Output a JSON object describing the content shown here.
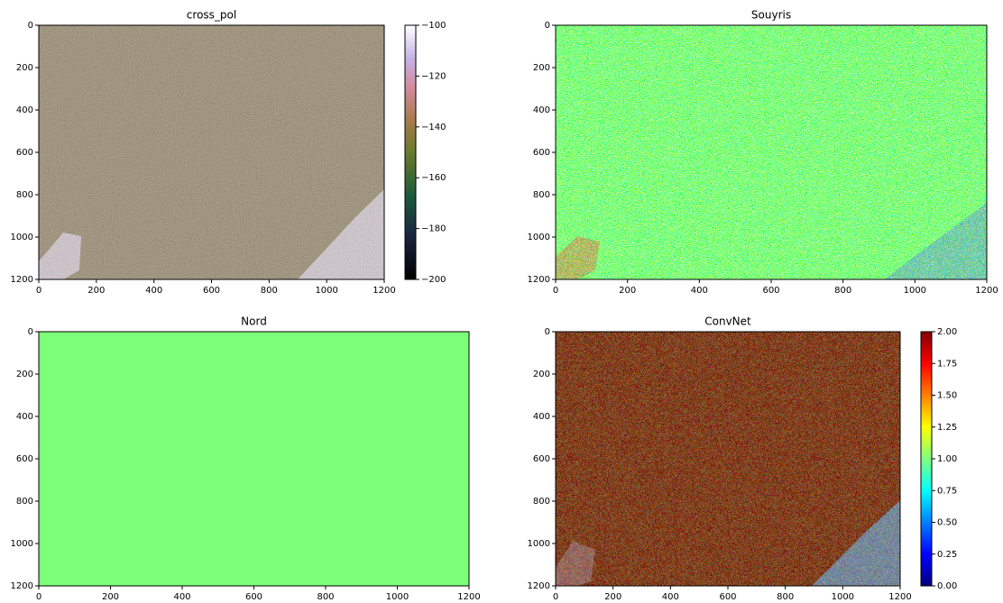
{
  "chart_data": [
    {
      "type": "image",
      "title": "cross_pol",
      "colormap": "cubehelix",
      "xlim": [
        0,
        1200
      ],
      "ylim": [
        1200,
        0
      ],
      "xticks": [
        0,
        200,
        400,
        600,
        800,
        1000,
        1200
      ],
      "yticks": [
        0,
        200,
        400,
        600,
        800,
        1000,
        1200
      ],
      "colorbar": {
        "lim": [
          -200,
          -100
        ],
        "ticks": [
          {
            "value": -200,
            "label": "−200"
          },
          {
            "value": -180,
            "label": "−180"
          },
          {
            "value": -160,
            "label": "−160"
          },
          {
            "value": -140,
            "label": "−140"
          },
          {
            "value": -120,
            "label": "−120"
          },
          {
            "value": -100,
            "label": "−100"
          }
        ]
      }
    },
    {
      "type": "image",
      "title": "Souyris",
      "colormap": "jet",
      "xlim": [
        0,
        1200
      ],
      "ylim": [
        1200,
        0
      ],
      "xticks": [
        0,
        200,
        400,
        600,
        800,
        1000,
        1200
      ],
      "yticks": [
        0,
        200,
        400,
        600,
        800,
        1000,
        1200
      ]
    },
    {
      "type": "image",
      "title": "Nord",
      "colormap": "jet",
      "xlim": [
        0,
        1200
      ],
      "ylim": [
        1200,
        0
      ],
      "xticks": [
        0,
        200,
        400,
        600,
        800,
        1000,
        1200
      ],
      "yticks": [
        0,
        200,
        400,
        600,
        800,
        1000,
        1200
      ]
    },
    {
      "type": "image",
      "title": "ConvNet",
      "colormap": "jet",
      "xlim": [
        0,
        1200
      ],
      "ylim": [
        1200,
        0
      ],
      "xticks": [
        0,
        200,
        400,
        600,
        800,
        1000,
        1200
      ],
      "yticks": [
        0,
        200,
        400,
        600,
        800,
        1000,
        1200
      ],
      "colorbar": {
        "lim": [
          0,
          2
        ],
        "ticks": [
          {
            "value": 0,
            "label": "0.00"
          },
          {
            "value": 0.25,
            "label": "0.25"
          },
          {
            "value": 0.5,
            "label": "0.50"
          },
          {
            "value": 0.75,
            "label": "0.75"
          },
          {
            "value": 1,
            "label": "1.00"
          },
          {
            "value": 1.25,
            "label": "1.25"
          },
          {
            "value": 1.5,
            "label": "1.50"
          },
          {
            "value": 1.75,
            "label": "1.75"
          },
          {
            "value": 2,
            "label": "2.00"
          }
        ]
      }
    }
  ]
}
